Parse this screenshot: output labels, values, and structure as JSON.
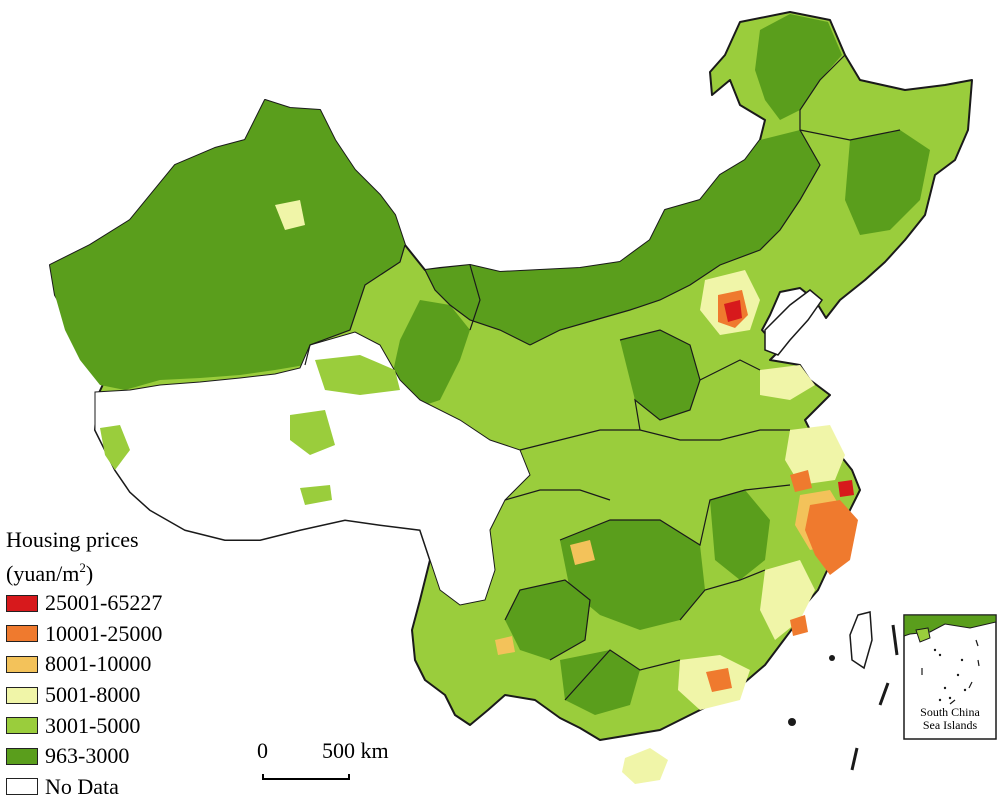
{
  "legend": {
    "title": "Housing prices",
    "unit_prefix": "(yuan/m",
    "unit_sup": "2",
    "unit_suffix": ")",
    "classes": [
      {
        "label": "25001-65227",
        "color": "#d7191c"
      },
      {
        "label": "10001-25000",
        "color": "#ef7a2e"
      },
      {
        "label": "8001-10000",
        "color": "#f3c25a"
      },
      {
        "label": "5001-8000",
        "color": "#f0f5a8"
      },
      {
        "label": "3001-5000",
        "color": "#9acd3c"
      },
      {
        "label": "963-3000",
        "color": "#5a9e1c"
      },
      {
        "label": "No Data",
        "color": "#ffffff"
      }
    ]
  },
  "scale_bar": {
    "zero": "0",
    "distance": "500 km"
  },
  "inset": {
    "label_line1": "South China",
    "label_line2": "Sea Islands"
  },
  "colors": {
    "dark_green": "#5a9e1c",
    "light_green": "#9acd3c",
    "pale_yellow": "#f0f5a8",
    "yellow": "#f3c25a",
    "orange": "#ef7a2e",
    "red": "#d7191c",
    "boundary": "#1a1a1a"
  }
}
